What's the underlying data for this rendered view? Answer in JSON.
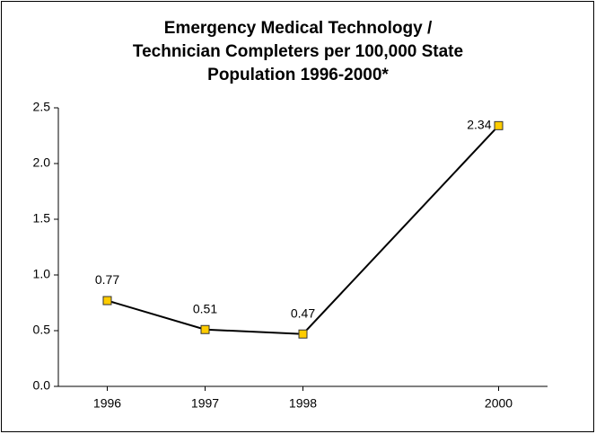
{
  "chart_data": {
    "type": "line",
    "title": [
      "Emergency Medical Technology /",
      "Technician Completers per 100,000 State",
      "Population 1996-2000*"
    ],
    "x": [
      1996,
      1997,
      1998,
      2000
    ],
    "series": [
      {
        "name": "Completers per 100,000",
        "color": "#000000",
        "marker_color": "#ffcc00",
        "values": [
          0.77,
          0.51,
          0.47,
          2.34
        ]
      }
    ],
    "xlim": [
      1995.5,
      2000.5
    ],
    "xticks": [
      1996,
      1997,
      1998,
      2000
    ],
    "ylim": [
      0,
      2.5
    ],
    "yticks": [
      {
        "value": 0,
        "label": "0.0"
      },
      0.5,
      {
        "value": 1,
        "label": "1.0"
      },
      1.5,
      {
        "value": 2,
        "label": "2.0"
      },
      2.5
    ],
    "grid": false
  }
}
